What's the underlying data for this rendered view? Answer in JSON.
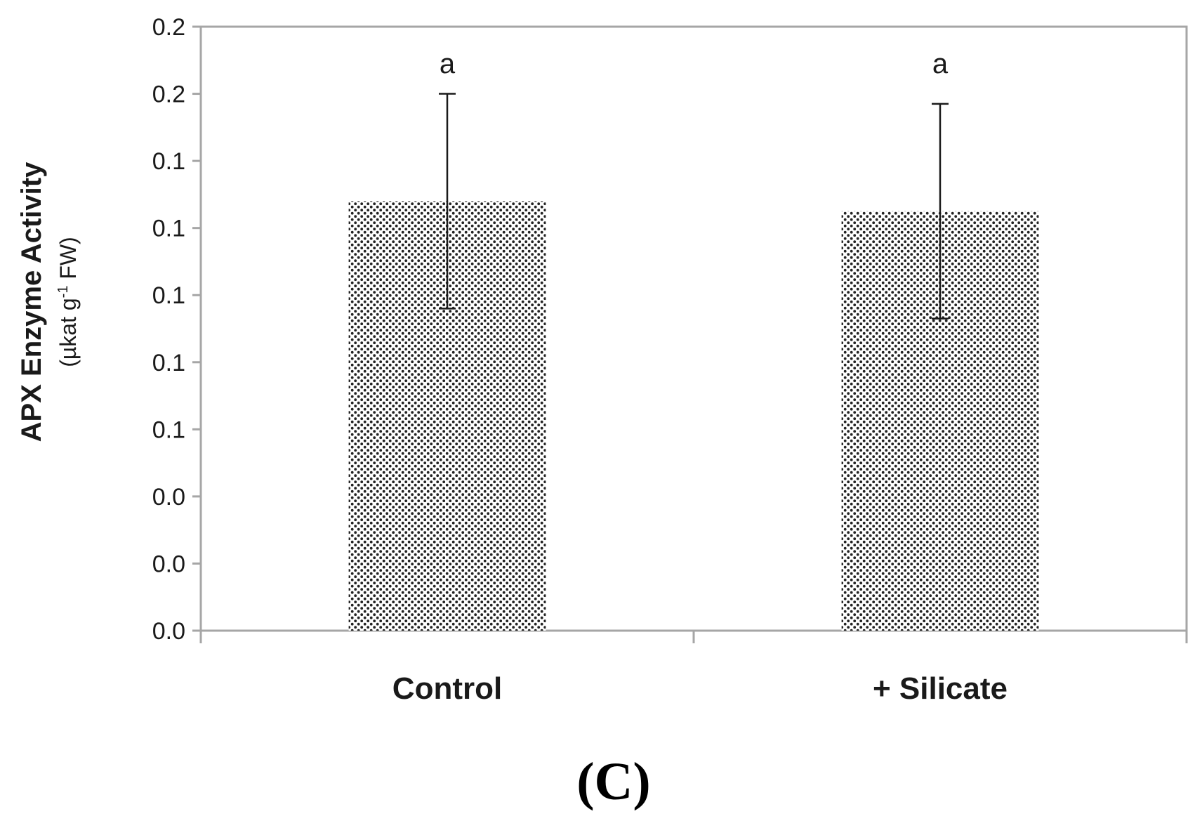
{
  "chart_data": {
    "type": "bar",
    "categories": [
      "Control",
      "+ Silicate"
    ],
    "series": [
      {
        "values": [
          0.128,
          0.125
        ],
        "error": [
          0.032,
          0.032
        ],
        "significance": [
          "a",
          "a"
        ]
      }
    ],
    "ylabel": "APX Enzyme Activity",
    "ylabel_unit_prefix": "(µkat g",
    "ylabel_unit_sup": "-1",
    "ylabel_unit_suffix": " FW)",
    "ylim": [
      0,
      0.18
    ],
    "yticks": [
      0,
      0.02,
      0.04,
      0.06,
      0.08,
      0.1,
      0.12,
      0.14,
      0.16,
      0.18
    ],
    "ytick_labels": [
      "0.0",
      "0.0",
      "0.0",
      "0.1",
      "0.1",
      "0.1",
      "0.1",
      "0.1",
      "0.2",
      "0.2"
    ],
    "grid": false,
    "legend": "none",
    "colors": {
      "bar_fill_background": "#ffffff",
      "bar_dot": "#222222",
      "axis": "#a6a6a6",
      "error_bar": "#1a1a1a"
    }
  },
  "panel_label": "(C)"
}
